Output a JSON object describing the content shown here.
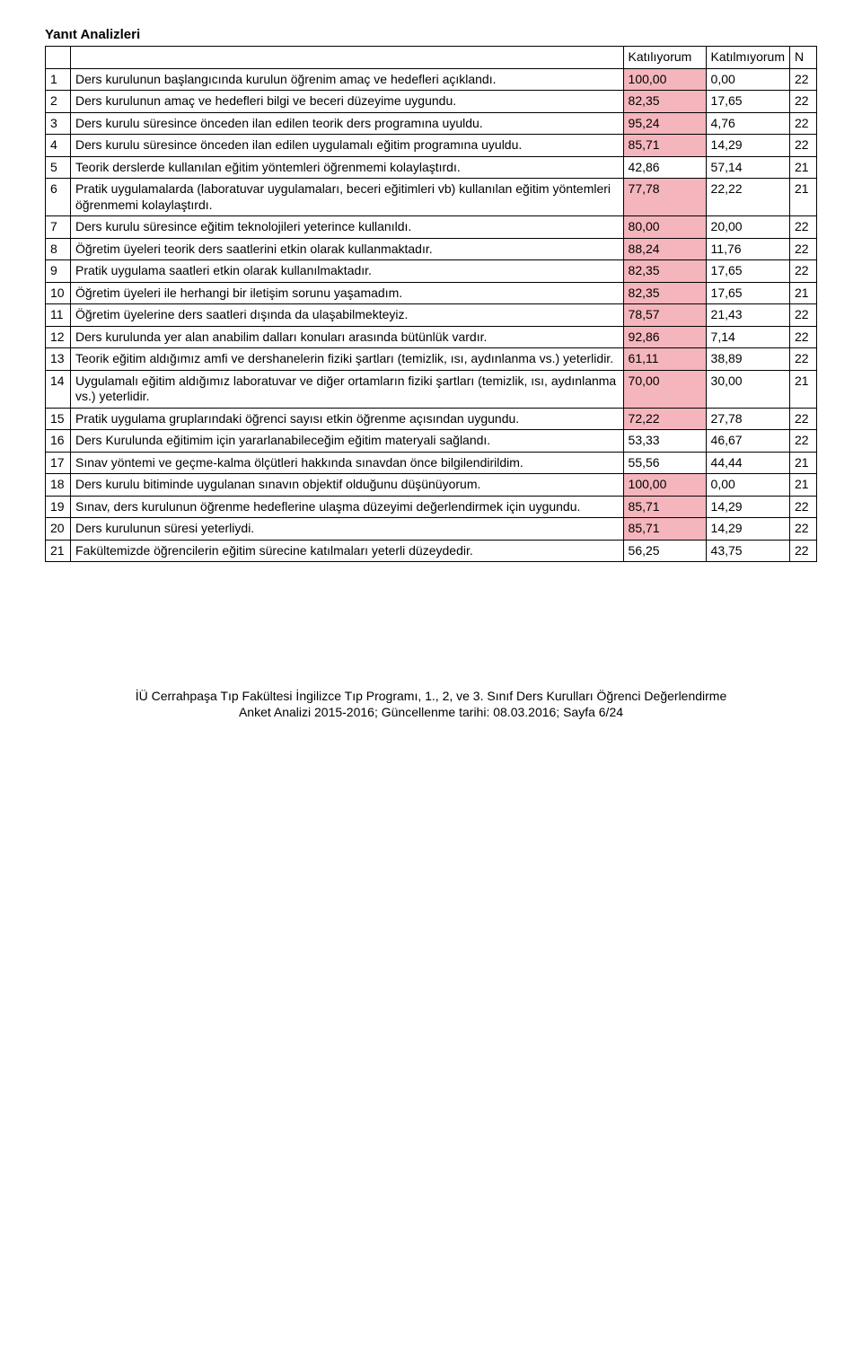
{
  "title": "Yanıt Analizleri",
  "headers": {
    "col1": "Katılıyorum",
    "col2": "Katılmıyorum",
    "col3": "N"
  },
  "rows": [
    {
      "n": "1",
      "stmt": "Ders kurulunun başlangıcında kurulun öğrenim amaç ve hedefleri açıklandı.",
      "v1": "100,00",
      "v2": "0,00",
      "v3": "22",
      "hl": [
        true,
        false,
        false
      ]
    },
    {
      "n": "2",
      "stmt": "Ders kurulunun amaç ve hedefleri bilgi ve beceri düzeyime uygundu.",
      "v1": "82,35",
      "v2": "17,65",
      "v3": "22",
      "hl": [
        true,
        false,
        false
      ]
    },
    {
      "n": "3",
      "stmt": "Ders kurulu süresince önceden ilan edilen teorik ders programına uyuldu.",
      "v1": "95,24",
      "v2": "4,76",
      "v3": "22",
      "hl": [
        true,
        false,
        false
      ]
    },
    {
      "n": "4",
      "stmt": "Ders kurulu süresince önceden ilan edilen uygulamalı eğitim programına uyuldu.",
      "v1": "85,71",
      "v2": "14,29",
      "v3": "22",
      "hl": [
        true,
        false,
        false
      ]
    },
    {
      "n": "5",
      "stmt": "Teorik derslerde kullanılan eğitim yöntemleri öğrenmemi kolaylaştırdı.",
      "v1": "42,86",
      "v2": "57,14",
      "v3": "21",
      "hl": [
        false,
        false,
        false
      ]
    },
    {
      "n": "6",
      "stmt": "Pratik uygulamalarda (laboratuvar uygulamaları, beceri eğitimleri vb) kullanılan eğitim yöntemleri öğrenmemi kolaylaştırdı.",
      "v1": "77,78",
      "v2": "22,22",
      "v3": "21",
      "hl": [
        true,
        false,
        false
      ]
    },
    {
      "n": "7",
      "stmt": "Ders kurulu süresince eğitim teknolojileri yeterince kullanıldı.",
      "v1": "80,00",
      "v2": "20,00",
      "v3": "22",
      "hl": [
        true,
        false,
        false
      ]
    },
    {
      "n": "8",
      "stmt": "Öğretim üyeleri teorik ders saatlerini etkin olarak kullanmaktadır.",
      "v1": "88,24",
      "v2": "11,76",
      "v3": "22",
      "hl": [
        true,
        false,
        false
      ]
    },
    {
      "n": "9",
      "stmt": "Pratik uygulama saatleri etkin olarak kullanılmaktadır.",
      "v1": "82,35",
      "v2": "17,65",
      "v3": "22",
      "hl": [
        true,
        false,
        false
      ]
    },
    {
      "n": "10",
      "stmt": "Öğretim üyeleri ile herhangi bir iletişim sorunu yaşamadım.",
      "v1": "82,35",
      "v2": "17,65",
      "v3": "21",
      "hl": [
        true,
        false,
        false
      ]
    },
    {
      "n": "11",
      "stmt": "Öğretim üyelerine ders saatleri dışında da ulaşabilmekteyiz.",
      "v1": "78,57",
      "v2": "21,43",
      "v3": "22",
      "hl": [
        true,
        false,
        false
      ]
    },
    {
      "n": "12",
      "stmt": "Ders kurulunda yer alan anabilim dalları konuları arasında bütünlük vardır.",
      "v1": "92,86",
      "v2": "7,14",
      "v3": "22",
      "hl": [
        true,
        false,
        false
      ]
    },
    {
      "n": "13",
      "stmt": "Teorik eğitim aldığımız amfi ve dershanelerin fiziki şartları (temizlik, ısı, aydınlanma vs.) yeterlidir.",
      "v1": "61,11",
      "v2": "38,89",
      "v3": "22",
      "hl": [
        true,
        false,
        false
      ]
    },
    {
      "n": "14",
      "stmt": "Uygulamalı eğitim aldığımız laboratuvar ve diğer ortamların fiziki şartları (temizlik, ısı, aydınlanma vs.) yeterlidir.",
      "v1": "70,00",
      "v2": "30,00",
      "v3": "21",
      "hl": [
        true,
        false,
        false
      ]
    },
    {
      "n": "15",
      "stmt": "Pratik uygulama gruplarındaki öğrenci sayısı etkin öğrenme açısından uygundu.",
      "v1": "72,22",
      "v2": "27,78",
      "v3": "22",
      "hl": [
        true,
        false,
        false
      ]
    },
    {
      "n": "16",
      "stmt": "Ders Kurulunda eğitimim için yararlanabileceğim eğitim materyali sağlandı.",
      "v1": "53,33",
      "v2": "46,67",
      "v3": "22",
      "hl": [
        false,
        false,
        false
      ]
    },
    {
      "n": "17",
      "stmt": "Sınav yöntemi ve geçme-kalma ölçütleri hakkında sınavdan önce bilgilendirildim.",
      "v1": "55,56",
      "v2": "44,44",
      "v3": "21",
      "hl": [
        false,
        false,
        false
      ]
    },
    {
      "n": "18",
      "stmt": "Ders kurulu bitiminde uygulanan sınavın objektif olduğunu düşünüyorum.",
      "v1": "100,00",
      "v2": "0,00",
      "v3": "21",
      "hl": [
        true,
        false,
        false
      ]
    },
    {
      "n": "19",
      "stmt": "Sınav, ders kurulunun öğrenme hedeflerine ulaşma düzeyimi değerlendirmek için uygundu.",
      "v1": "85,71",
      "v2": "14,29",
      "v3": "22",
      "hl": [
        true,
        false,
        false
      ]
    },
    {
      "n": "20",
      "stmt": "Ders kurulunun süresi yeterliydi.",
      "v1": "85,71",
      "v2": "14,29",
      "v3": "22",
      "hl": [
        true,
        false,
        false
      ]
    },
    {
      "n": "21",
      "stmt": "Fakültemizde öğrencilerin eğitim sürecine katılmaları yeterli düzeydedir.",
      "v1": "56,25",
      "v2": "43,75",
      "v3": "22",
      "hl": [
        false,
        false,
        false
      ]
    }
  ],
  "footer": {
    "line1": "İÜ Cerrahpaşa Tıp Fakültesi İngilizce Tıp Programı, 1., 2, ve 3. Sınıf Ders Kurulları Öğrenci Değerlendirme",
    "line2": "Anket Analizi 2015-2016; Güncellenme tarihi: 08.03.2016; Sayfa 6/24"
  },
  "style": {
    "highlight_color": "#f4b5bd",
    "border_color": "#000000",
    "font_family": "Arial",
    "title_fontsize": 15,
    "cell_fontsize": 14
  }
}
